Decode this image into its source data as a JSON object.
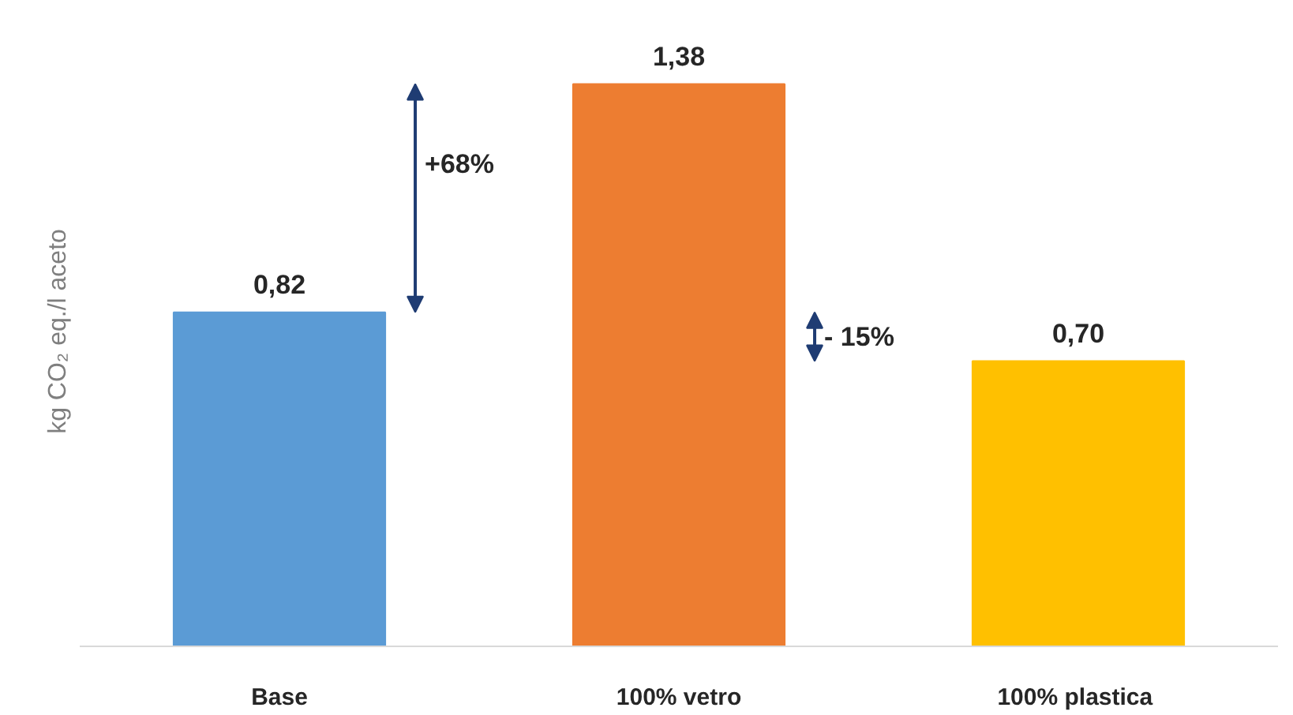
{
  "chart_data": {
    "type": "bar",
    "ylabel": "kg CO₂ eq./l aceto",
    "categories": [
      "Base",
      "100% vetro",
      "100%  plastica"
    ],
    "values": [
      0.82,
      1.38,
      0.7
    ],
    "colors": [
      "#5b9bd5",
      "#ed7d31",
      "#ffc000"
    ],
    "value_labels": [
      "0,82",
      "1,38",
      "0,70"
    ],
    "annotations": [
      "+68%",
      "- 15%"
    ],
    "grid": false
  }
}
